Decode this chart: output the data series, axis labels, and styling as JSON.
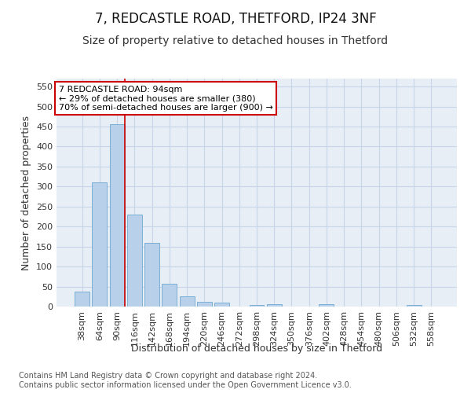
{
  "title": "7, REDCASTLE ROAD, THETFORD, IP24 3NF",
  "subtitle": "Size of property relative to detached houses in Thetford",
  "xlabel": "Distribution of detached houses by size in Thetford",
  "ylabel": "Number of detached properties",
  "categories": [
    "38sqm",
    "64sqm",
    "90sqm",
    "116sqm",
    "142sqm",
    "168sqm",
    "194sqm",
    "220sqm",
    "246sqm",
    "272sqm",
    "298sqm",
    "324sqm",
    "350sqm",
    "376sqm",
    "402sqm",
    "428sqm",
    "454sqm",
    "480sqm",
    "506sqm",
    "532sqm",
    "558sqm"
  ],
  "values": [
    38,
    310,
    456,
    230,
    160,
    57,
    25,
    12,
    10,
    0,
    3,
    5,
    0,
    0,
    5,
    0,
    0,
    0,
    0,
    3,
    0
  ],
  "bar_color": "#b8d0ea",
  "bar_edge_color": "#7aafd4",
  "redline_bar_index": 2,
  "annotation_text": "7 REDCASTLE ROAD: 94sqm\n← 29% of detached houses are smaller (380)\n70% of semi-detached houses are larger (900) →",
  "annotation_box_color": "white",
  "annotation_box_edge_color": "#cc0000",
  "redline_color": "#cc0000",
  "grid_color": "#c8d4e8",
  "background_color": "#e8eef6",
  "ylim": [
    0,
    570
  ],
  "yticks": [
    0,
    50,
    100,
    150,
    200,
    250,
    300,
    350,
    400,
    450,
    500,
    550
  ],
  "footer": "Contains HM Land Registry data © Crown copyright and database right 2024.\nContains public sector information licensed under the Open Government Licence v3.0.",
  "title_fontsize": 12,
  "subtitle_fontsize": 10,
  "label_fontsize": 9,
  "tick_fontsize": 8,
  "annot_fontsize": 8,
  "footer_fontsize": 7
}
